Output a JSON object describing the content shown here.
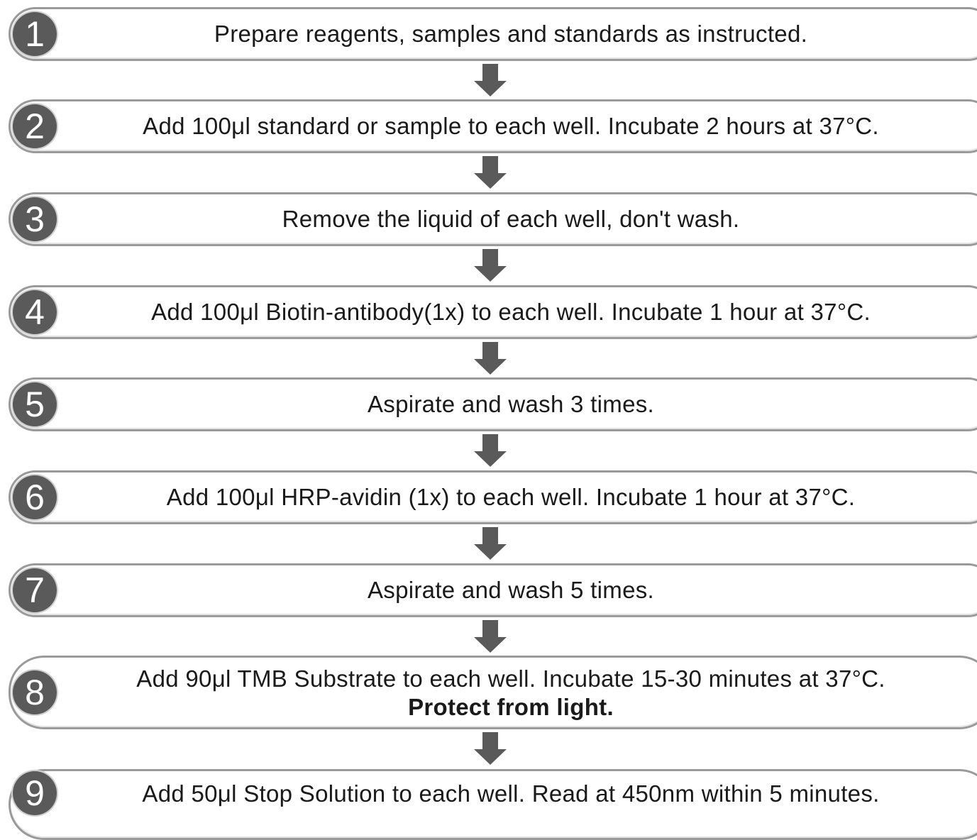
{
  "steps": [
    {
      "number": "1",
      "text": "Prepare reagents, samples and standards as instructed."
    },
    {
      "number": "2",
      "text": "Add 100μl standard or sample to each well. Incubate 2 hours at 37°C."
    },
    {
      "number": "3",
      "text": "Remove the liquid of each well, don't wash."
    },
    {
      "number": "4",
      "text": "Add 100μl Biotin-antibody(1x) to each well. Incubate 1 hour at 37°C."
    },
    {
      "number": "5",
      "text": "Aspirate and wash 3 times."
    },
    {
      "number": "6",
      "text": "Add 100μl HRP-avidin (1x) to each well. Incubate 1 hour at 37°C."
    },
    {
      "number": "7",
      "text": "Aspirate and wash 5 times."
    },
    {
      "number": "8",
      "text": "Add 90μl TMB Substrate to each well. Incubate 15-30 minutes at 37°C.",
      "emphasis": "Protect from light."
    },
    {
      "number": "9",
      "text": "Add 50μl Stop Solution to each well. Read at 450nm within 5 minutes."
    }
  ],
  "colors": {
    "badge": "#5a5a5a",
    "border": "#9a9a9a",
    "arrow": "#5a5a5a",
    "text": "#1a1a1a"
  },
  "icons": {
    "connector": "down-arrow-icon"
  }
}
